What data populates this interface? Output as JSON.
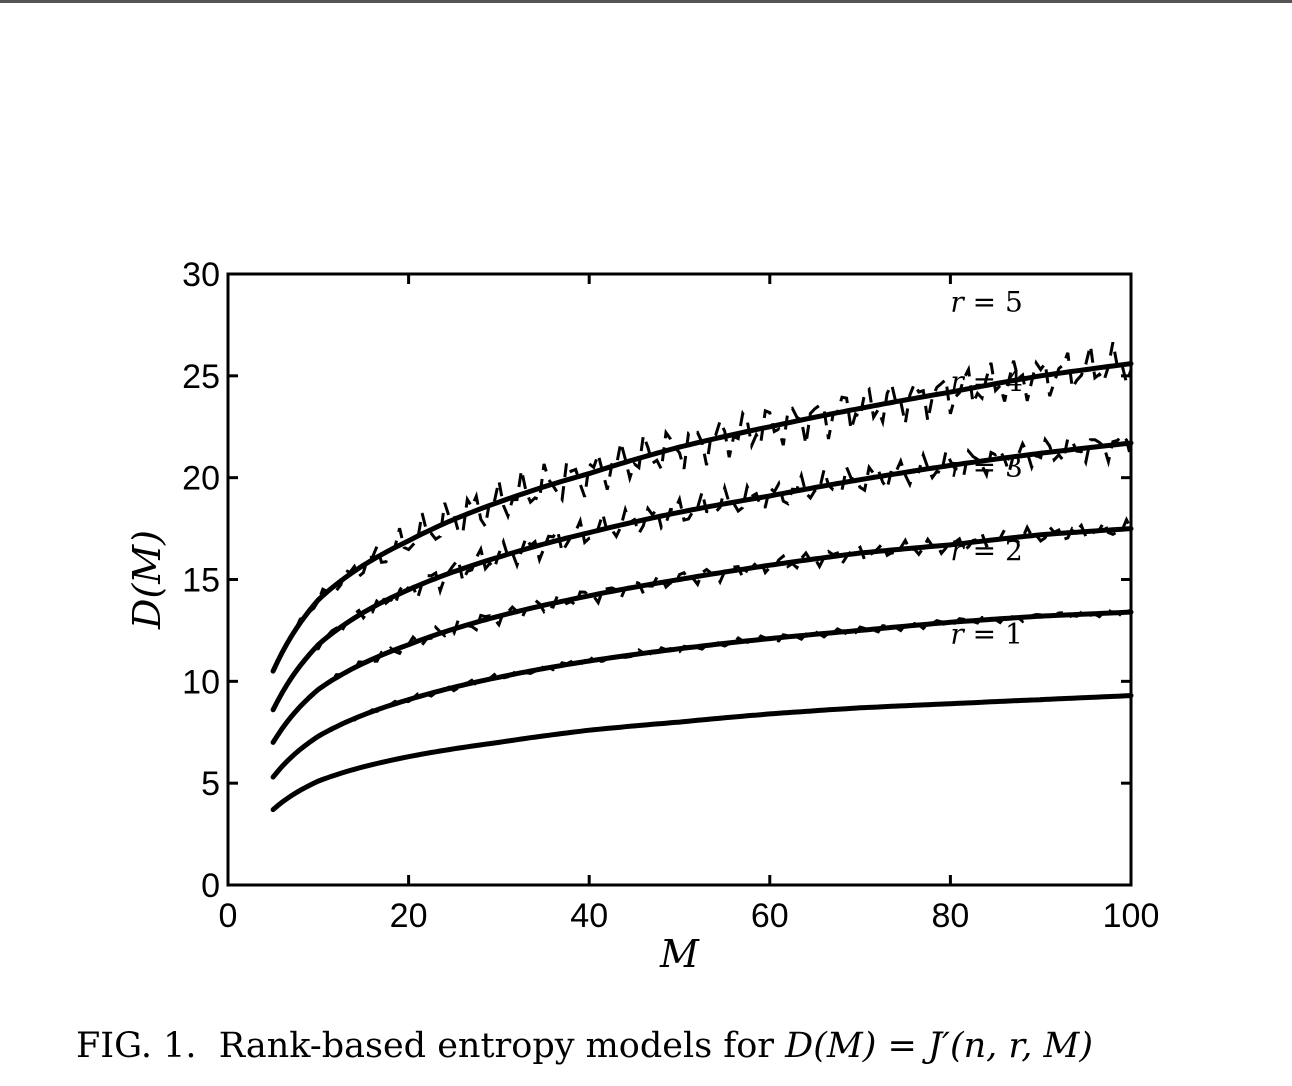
{
  "chart_data": {
    "type": "line",
    "title": "",
    "xlabel": "M",
    "ylabel": "D(M)",
    "xlim": [
      0,
      100
    ],
    "ylim": [
      0,
      30
    ],
    "x_ticks": [
      0,
      20,
      40,
      60,
      80,
      100
    ],
    "y_ticks": [
      0,
      5,
      10,
      15,
      20,
      25,
      30
    ],
    "x_tick_labels": [
      "0",
      "20",
      "40",
      "60",
      "80",
      "100"
    ],
    "y_tick_labels": [
      "0",
      "5",
      "10",
      "15",
      "20",
      "25",
      "30"
    ],
    "grid": false,
    "legend": "inline labels at right",
    "line_color": "#000000",
    "x": [
      5,
      10,
      20,
      30,
      40,
      50,
      60,
      70,
      80,
      90,
      100
    ],
    "series": [
      {
        "name": "r = 1",
        "r": "1",
        "style": "solid",
        "values": [
          3.7,
          5.1,
          6.3,
          7.0,
          7.6,
          8.0,
          8.4,
          8.7,
          8.9,
          9.1,
          9.3
        ]
      },
      {
        "name": "r = 2",
        "r": "2",
        "style": "solid",
        "values": [
          5.3,
          7.3,
          9.1,
          10.2,
          11.0,
          11.6,
          12.1,
          12.5,
          12.9,
          13.2,
          13.4
        ]
      },
      {
        "name": "r = 3",
        "r": "3",
        "style": "solid",
        "values": [
          7.0,
          9.6,
          11.8,
          13.2,
          14.2,
          15.0,
          15.7,
          16.3,
          16.7,
          17.2,
          17.5
        ]
      },
      {
        "name": "r = 4",
        "r": "4",
        "style": "solid",
        "values": [
          8.6,
          11.8,
          14.5,
          16.1,
          17.3,
          18.3,
          19.1,
          19.9,
          20.6,
          21.2,
          21.7
        ]
      },
      {
        "name": "r = 5",
        "r": "5",
        "style": "solid",
        "values": [
          10.5,
          14.0,
          16.9,
          18.8,
          20.2,
          21.5,
          22.5,
          23.4,
          24.2,
          25.0,
          25.6
        ]
      }
    ],
    "noisy_series_style": "dashed"
  },
  "caption": {
    "prefix": "FIG. 1.",
    "text": "Rank-based entropy models for ",
    "formula_lhs": "D",
    "formula_lhs_arg": "(M)",
    "formula_eq": " = ",
    "formula_rhs": "J′",
    "formula_rhs_args": "(n, r, M)"
  }
}
